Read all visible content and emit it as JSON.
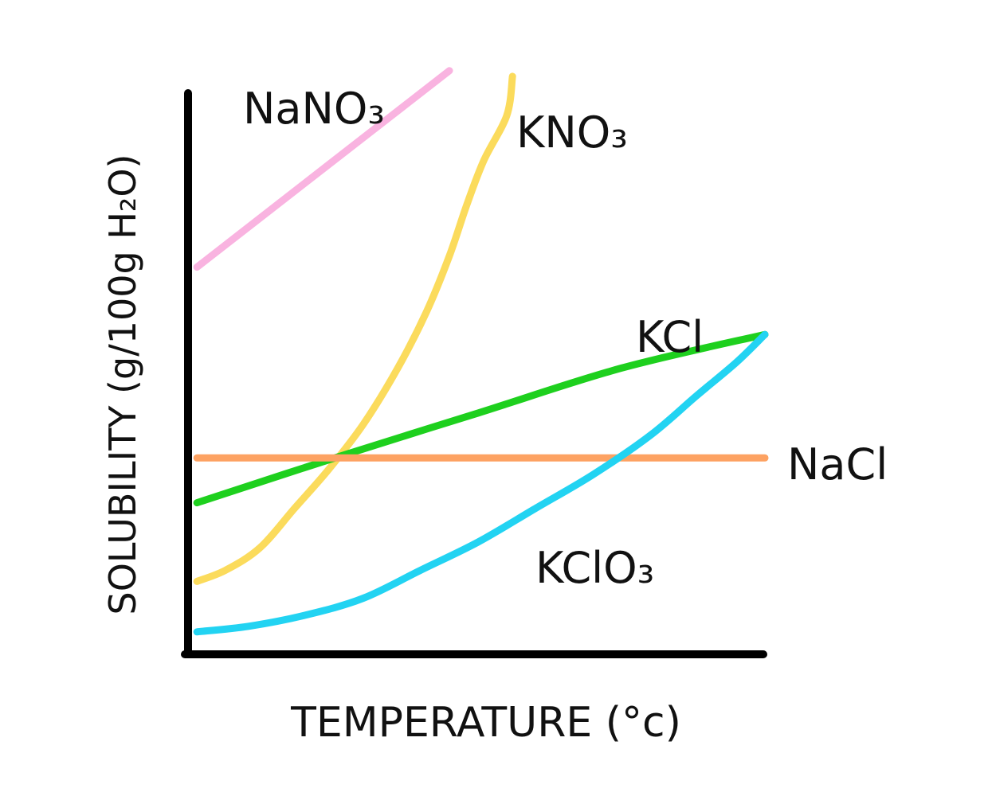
{
  "chart_data": {
    "type": "line",
    "xlabel": "TEMPERATURE (°c)",
    "ylabel": "SOLUBILITY (g/100g H₂O)",
    "xlim": [
      0,
      100
    ],
    "ylim": [
      0,
      100
    ],
    "grid": false,
    "legend": "inline labels",
    "series": [
      {
        "name": "NaNO₃",
        "color": "#f9b3e0",
        "points": [
          [
            1,
            69
          ],
          [
            45,
            104
          ]
        ]
      },
      {
        "name": "KNO₃",
        "color": "#fbdb5c",
        "points": [
          [
            1,
            13
          ],
          [
            6,
            15
          ],
          [
            12,
            19
          ],
          [
            18,
            26
          ],
          [
            24,
            33
          ],
          [
            30,
            41
          ],
          [
            36,
            51
          ],
          [
            41,
            61
          ],
          [
            45,
            71
          ],
          [
            48,
            80
          ],
          [
            51,
            88
          ],
          [
            55,
            96
          ],
          [
            56,
            103
          ]
        ]
      },
      {
        "name": "KCl",
        "color": "#1ed01e",
        "points": [
          [
            1,
            27
          ],
          [
            25,
            35
          ],
          [
            50,
            43
          ],
          [
            75,
            51
          ],
          [
            100,
            57
          ]
        ]
      },
      {
        "name": "NaCl",
        "color": "#fda262",
        "points": [
          [
            1,
            35
          ],
          [
            100,
            35
          ]
        ]
      },
      {
        "name": "KClO₃",
        "color": "#22d3f2",
        "points": [
          [
            1,
            4
          ],
          [
            10,
            5
          ],
          [
            20,
            7
          ],
          [
            30,
            10
          ],
          [
            40,
            15
          ],
          [
            50,
            20
          ],
          [
            60,
            26
          ],
          [
            70,
            32
          ],
          [
            80,
            39
          ],
          [
            88,
            46
          ],
          [
            95,
            52
          ],
          [
            100,
            57
          ]
        ]
      }
    ]
  }
}
